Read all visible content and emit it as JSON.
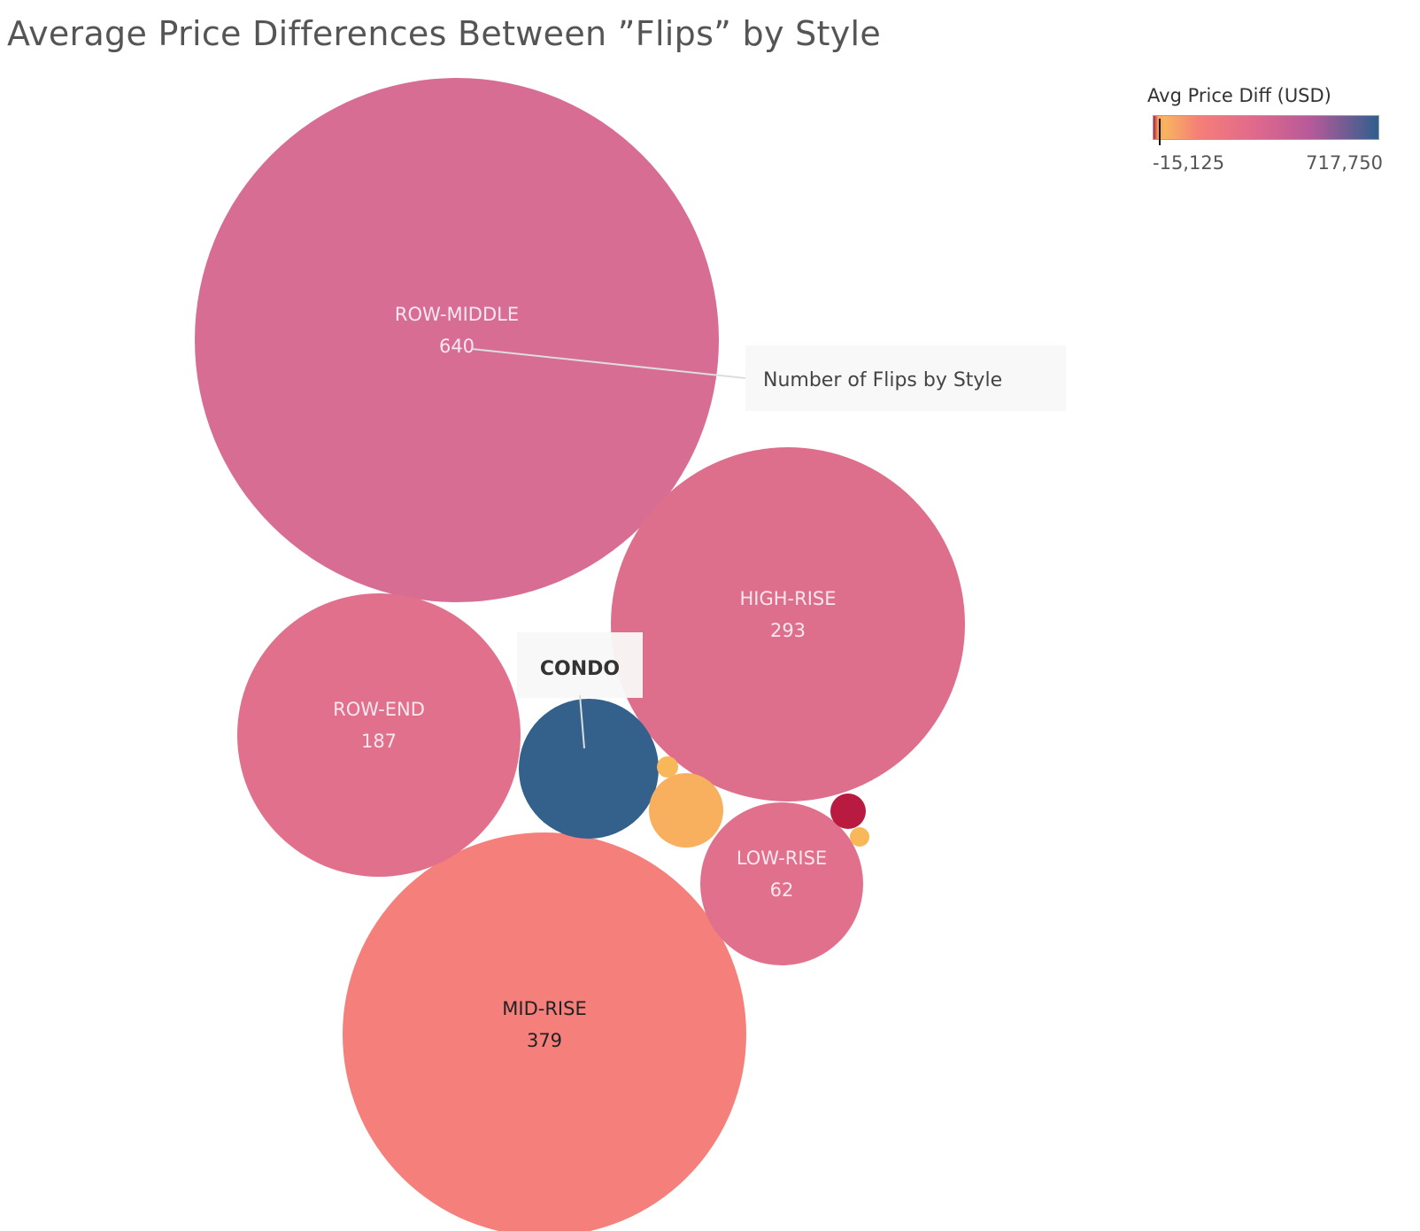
{
  "title": "Average Price Differences Between ”Flips” by Style",
  "legend": {
    "title": "Avg Price Diff (USD)",
    "min_label": "-15,125",
    "max_label": "717,750",
    "min": -15125,
    "max": 717750,
    "stops": [
      {
        "at": 0.0,
        "color": "#b51b3f"
      },
      {
        "at": 0.02,
        "color": "#f5a15c"
      },
      {
        "at": 0.05,
        "color": "#f9b45e"
      },
      {
        "at": 0.2,
        "color": "#f57f78"
      },
      {
        "at": 0.45,
        "color": "#e0698c"
      },
      {
        "at": 0.7,
        "color": "#b65a99"
      },
      {
        "at": 1.0,
        "color": "#2f5f8e"
      }
    ]
  },
  "chart_data": {
    "type": "bubble",
    "size_measure": "Number of Flips by Style",
    "color_measure": "Avg Price Diff (USD)",
    "bubbles": [
      {
        "label": "ROW-MIDDLE",
        "value": 640,
        "color": "#d76d92",
        "label_color": "#fbe8ef"
      },
      {
        "label": "HIGH-RISE",
        "value": 293,
        "color": "#de6f8c",
        "label_color": "#fbe8ef"
      },
      {
        "label": "MID-RISE",
        "value": 379,
        "color": "#f57f7a",
        "label_color": "#222222"
      },
      {
        "label": "ROW-END",
        "value": 187,
        "color": "#e0708c",
        "label_color": "#fbe8ef"
      },
      {
        "label": "LOW-RISE",
        "value": 62,
        "color": "#e0708c",
        "label_color": "#fbe8ef"
      },
      {
        "label": "CONDO",
        "value": null,
        "color": "#34608c",
        "label_color": "#222222"
      },
      {
        "label": "",
        "value": null,
        "color": "#f8b05e",
        "label_color": "#222222"
      },
      {
        "label": "",
        "value": null,
        "color": "#b81a40",
        "label_color": "#222222"
      },
      {
        "label": "",
        "value": null,
        "color": "#f8b85a",
        "label_color": "#222222"
      },
      {
        "label": "",
        "value": null,
        "color": "#f8b85a",
        "label_color": "#222222"
      }
    ],
    "annotations": [
      {
        "text": "Number of Flips by Style",
        "target": "ROW-MIDDLE"
      },
      {
        "text": "CONDO",
        "target": "CONDO"
      }
    ]
  }
}
